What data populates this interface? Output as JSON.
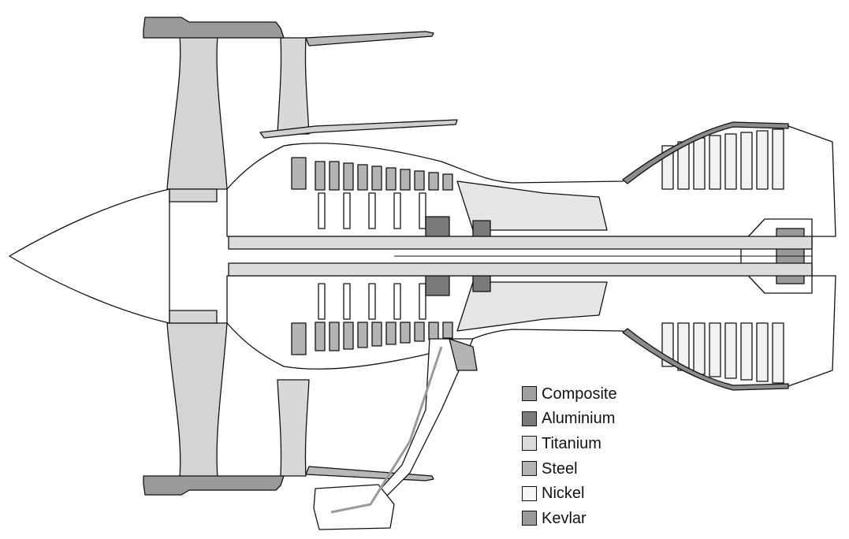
{
  "legend": {
    "items": [
      {
        "label": "Composite",
        "color": "#a0a0a0"
      },
      {
        "label": "Aluminium",
        "color": "#7a7a7a"
      },
      {
        "label": "Titanium",
        "color": "#dcdcdc"
      },
      {
        "label": "Steel",
        "color": "#b4b4b4"
      },
      {
        "label": "Nickel",
        "color": "#f7f7f7"
      },
      {
        "label": "Kevlar",
        "color": "#9a9a9a"
      }
    ]
  }
}
